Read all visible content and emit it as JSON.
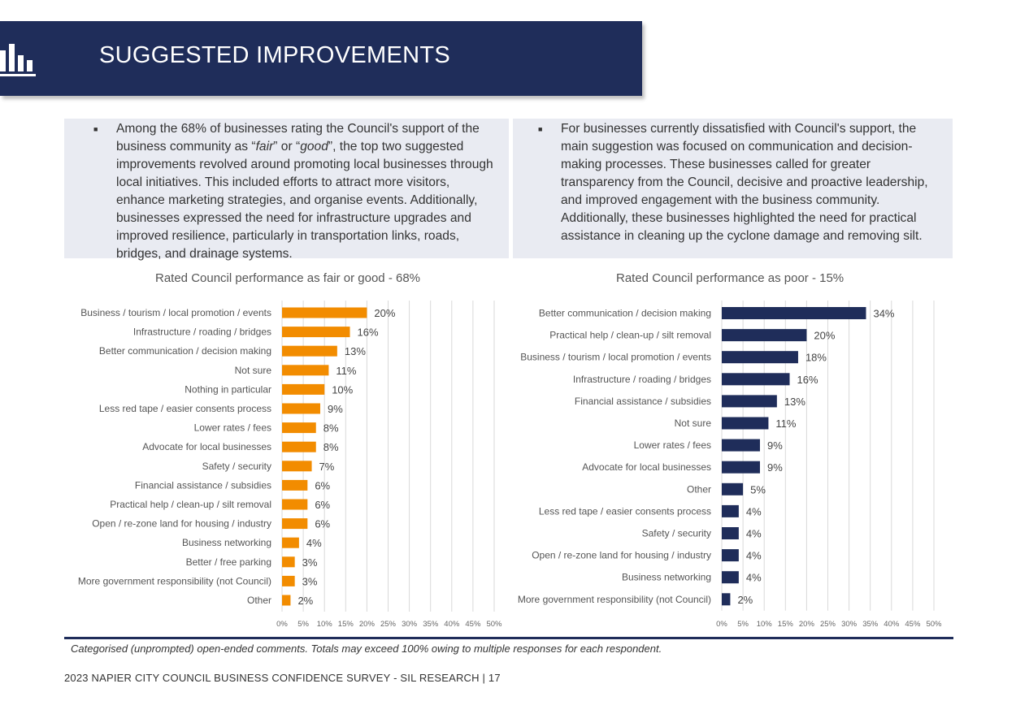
{
  "header": {
    "title": "SUGGESTED IMPROVEMENTS",
    "icon": "bar-chart-icon"
  },
  "notes": {
    "left": {
      "p1": "Among the 68% of businesses rating the Council's support of the business community as “",
      "em1": "fair",
      "p2": "” or “",
      "em2": "good",
      "p3": "”, the top two suggested improvements revolved around promoting local businesses through local initiatives. This included efforts to attract more visitors, enhance marketing strategies, and organise events. Additionally, businesses expressed the need for infrastructure upgrades and improved resilience, particularly in transportation links, roads, bridges, and drainage systems."
    },
    "right": "For businesses currently dissatisfied with Council's support, the main suggestion was focused on communication and decision-making processes. These businesses called for greater transparency from the Council, decisive and proactive leadership, and improved engagement with the business community. Additionally, these businesses highlighted the need for practical assistance in cleaning up the cyclone damage and removing silt."
  },
  "chart_data": [
    {
      "type": "bar",
      "orientation": "horizontal",
      "title": "Rated Council performance as fair or good - 68%",
      "color": "#f28c00",
      "xlim": [
        0,
        50
      ],
      "xticks": [
        "0%",
        "5%",
        "10%",
        "15%",
        "20%",
        "25%",
        "30%",
        "35%",
        "40%",
        "45%",
        "50%"
      ],
      "grid": true,
      "categories": [
        "Business / tourism / local promotion / events",
        "Infrastructure / roading / bridges",
        "Better communication / decision making",
        "Not sure",
        "Nothing in particular",
        "Less red tape / easier consents process",
        "Lower rates / fees",
        "Advocate for local businesses",
        "Safety / security",
        "Financial assistance / subsidies",
        "Practical help / clean-up / silt removal",
        "Open / re-zone land for housing / industry",
        "Business networking",
        "Better / free parking",
        "More government responsibility (not Council)",
        "Other"
      ],
      "values": [
        20,
        16,
        13,
        11,
        10,
        9,
        8,
        8,
        7,
        6,
        6,
        6,
        4,
        3,
        3,
        2
      ],
      "labels": [
        "20%",
        "16%",
        "13%",
        "11%",
        "10%",
        "9%",
        "8%",
        "8%",
        "7%",
        "6%",
        "6%",
        "6%",
        "4%",
        "3%",
        "3%",
        "2%"
      ]
    },
    {
      "type": "bar",
      "orientation": "horizontal",
      "title": "Rated Council performance as poor - 15%",
      "color": "#1f2d5a",
      "xlim": [
        0,
        50
      ],
      "xticks": [
        "0%",
        "5%",
        "10%",
        "15%",
        "20%",
        "25%",
        "30%",
        "35%",
        "40%",
        "45%",
        "50%"
      ],
      "grid": true,
      "categories": [
        "Better communication / decision making",
        "Practical help / clean-up / silt removal",
        "Business / tourism / local promotion / events",
        "Infrastructure / roading / bridges",
        "Financial assistance / subsidies",
        "Not sure",
        "Lower rates / fees",
        "Advocate for local businesses",
        "Other",
        "Less red tape / easier consents process",
        "Safety / security",
        "Open / re-zone land for housing / industry",
        "Business networking",
        "More government responsibility (not Council)"
      ],
      "values": [
        34,
        20,
        18,
        16,
        13,
        11,
        9,
        9,
        5,
        4,
        4,
        4,
        4,
        2
      ],
      "labels": [
        "34%",
        "20%",
        "18%",
        "16%",
        "13%",
        "11%",
        "9%",
        "9%",
        "5%",
        "4%",
        "4%",
        "4%",
        "4%",
        "2%"
      ]
    }
  ],
  "footnote": "Categorised (unprompted) open-ended comments. Totals may exceed 100% owing to multiple responses for each respondent.",
  "footer": "2023 NAPIER CITY COUNCIL BUSINESS CONFIDENCE SURVEY - SIL RESEARCH | 17"
}
